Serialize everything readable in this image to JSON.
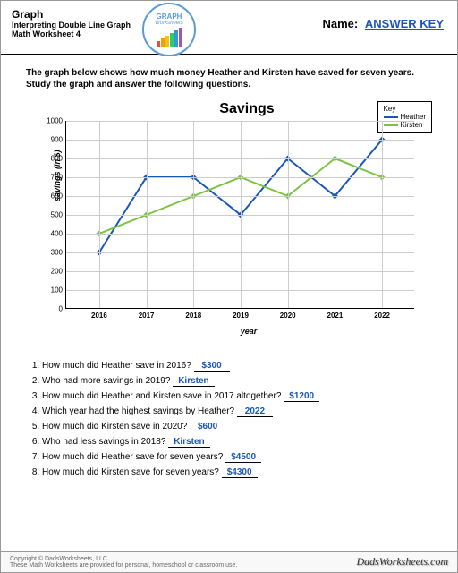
{
  "header": {
    "title": "Graph",
    "subtitle1": "Interpreting Double Line Graph",
    "subtitle2": "Math Worksheet 4",
    "logo_text1": "GRAPH",
    "logo_text2": "Worksheets",
    "name_label": "Name:",
    "answer_key": "ANSWER KEY"
  },
  "instructions": "The graph below shows how much money Heather and Kirsten have saved for seven years.  Study the graph and answer the following questions.",
  "chart": {
    "title": "Savings",
    "type": "line",
    "xlabel": "year",
    "ylabel": "savings (in $)",
    "ylim": [
      0,
      1000
    ],
    "ytick_step": 100,
    "categories": [
      "2016",
      "2017",
      "2018",
      "2019",
      "2020",
      "2021",
      "2022"
    ],
    "series": [
      {
        "name": "Heather",
        "color": "#1a56b8",
        "values": [
          300,
          700,
          700,
          500,
          800,
          600,
          900
        ]
      },
      {
        "name": "Kirsten",
        "color": "#7cc243",
        "values": [
          400,
          500,
          600,
          700,
          600,
          800,
          700
        ]
      }
    ],
    "legend_title": "Key",
    "grid_color": "#cccccc",
    "background_color": "#ffffff",
    "line_width": 2,
    "marker": "diamond",
    "marker_size": 5,
    "label_fontsize": 9,
    "tick_fontsize": 8,
    "title_fontsize": 16
  },
  "questions": [
    {
      "text": "How much did Heather save in 2016?",
      "answer": "$300"
    },
    {
      "text": "Who had more savings in 2019?",
      "answer": "Kirsten"
    },
    {
      "text": "How much did Heather and Kirsten save in 2017 altogether?",
      "answer": "$1200"
    },
    {
      "text": "Which year had the highest savings by Heather?",
      "answer": "2022"
    },
    {
      "text": "How much did Kirsten save in 2020?",
      "answer": "$600"
    },
    {
      "text": "Who had less savings in 2018?",
      "answer": "Kirsten"
    },
    {
      "text": "How much did Heather save for seven years?",
      "answer": "$4500"
    },
    {
      "text": "How much did Kirsten save for seven years?",
      "answer": "$4300"
    }
  ],
  "footer": {
    "copyright": "Copyright © DadsWorksheets, LLC",
    "tagline": "These Math Worksheets are provided for personal, homeschool or classroom use.",
    "site": "DadsWorksheets.com"
  },
  "logo_bars": [
    {
      "h": 6,
      "c": "#e74c3c"
    },
    {
      "h": 9,
      "c": "#f39c12"
    },
    {
      "h": 12,
      "c": "#f1c40f"
    },
    {
      "h": 15,
      "c": "#2ecc71"
    },
    {
      "h": 18,
      "c": "#3498db"
    },
    {
      "h": 21,
      "c": "#9b59b6"
    }
  ]
}
